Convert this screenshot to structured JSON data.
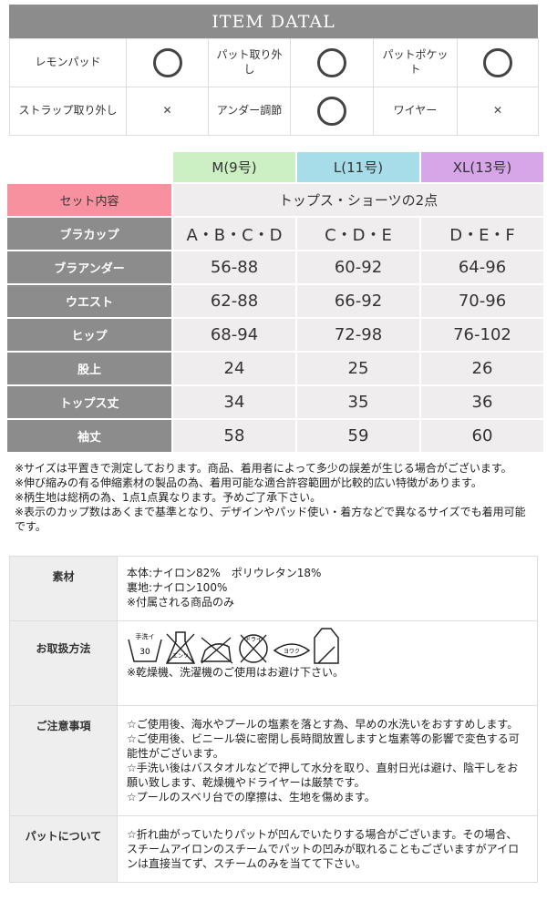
{
  "header": {
    "title": "ITEM DATAL"
  },
  "features": [
    [
      {
        "label": "レモンパッド",
        "mark": "circle"
      },
      {
        "label": "パット取り外し",
        "mark": "circle"
      },
      {
        "label": "パットポケット",
        "mark": "circle"
      }
    ],
    [
      {
        "label": "ストラップ取り外し",
        "mark": "cross"
      },
      {
        "label": "アンダー調節",
        "mark": "circle"
      },
      {
        "label": "ワイヤー",
        "mark": "cross"
      }
    ]
  ],
  "marks": {
    "cross": "✕"
  },
  "sizes": {
    "columns": [
      {
        "label": "M(9号)",
        "color": "#ccf0c4"
      },
      {
        "label": "L(11号)",
        "color": "#a6dde8"
      },
      {
        "label": "XL(13号)",
        "color": "#d6a6e8"
      }
    ],
    "set": {
      "label": "セット内容",
      "value": "トップス・ショーツの2点",
      "color": "#f7909f"
    },
    "rows": [
      {
        "label": "ブラカップ",
        "values": [
          "A・B・C・D",
          "C・D・E",
          "D・E・F"
        ]
      },
      {
        "label": "ブラアンダー",
        "values": [
          "56-88",
          "60-92",
          "64-96"
        ]
      },
      {
        "label": "ウエスト",
        "values": [
          "62-88",
          "66-92",
          "70-96"
        ]
      },
      {
        "label": "ヒップ",
        "values": [
          "68-94",
          "72-98",
          "76-102"
        ]
      },
      {
        "label": "股上",
        "values": [
          "24",
          "25",
          "26"
        ]
      },
      {
        "label": "トップス丈",
        "values": [
          "34",
          "35",
          "36"
        ]
      },
      {
        "label": "袖丈",
        "values": [
          "58",
          "59",
          "60"
        ]
      }
    ]
  },
  "notes": [
    "※サイズは平置きで測定しております。商品、着用者によって多少の誤差が生じる場合がございます。",
    "※伸び縮みの有る伸縮素材の製品の為、着用可能な適合許容範囲が比較的広い特徴があります。",
    "※柄生地は総柄の為、1点1点異なります。予めご了承下さい。",
    "※表示のカップ数はあくまで基準となり、デザインやパッド使い・着方などで異なるサイズでも着用可能です。"
  ],
  "info": {
    "material": {
      "label": "素材",
      "lines": [
        "本体:ナイロン82%　ポリウレタン18%",
        "裏地:ナイロン100%",
        "※付属される商品のみ"
      ]
    },
    "care": {
      "label": "お取扱方法",
      "icons": [
        "hand-wash-30-icon",
        "no-bleach-icon",
        "no-iron-icon",
        "no-dry-clean-icon",
        "wring-gently-icon",
        "dry-flat-shade-icon"
      ],
      "icon_text": {
        "wash": "手洗イ",
        "temp": "30",
        "bleach": "エンソ",
        "dry": "ドライ",
        "wring": "ヨワク"
      },
      "note": "※乾燥機、洗濯機のご使用はお避け下さい。"
    },
    "caution": {
      "label": "ご注意事項",
      "lines": [
        "☆ご使用後、海水やプールの塩素を落とす為、早めの水洗いをおすすめします。",
        "☆ご使用後、ビニール袋に密閉し長時間放置しますと塩素等の影響で変色する可能性がございます。",
        "☆手洗い後はバスタオルなどで押して水分を取り、直射日光は避け、陰干しをお願い致します、乾燥機やドライヤーは厳禁です。",
        "☆プールのスベリ台での摩擦は、生地を傷めます。"
      ]
    },
    "pad": {
      "label": "パットについて",
      "lines": [
        "☆折れ曲がっていたりパットが凹んでいたりする場合がございます。その場合、スチームアイロンのスチームでパットの凹みが取れることもございますがアイロンは直接当てず、スチームのみを当てて下さい。"
      ]
    }
  }
}
